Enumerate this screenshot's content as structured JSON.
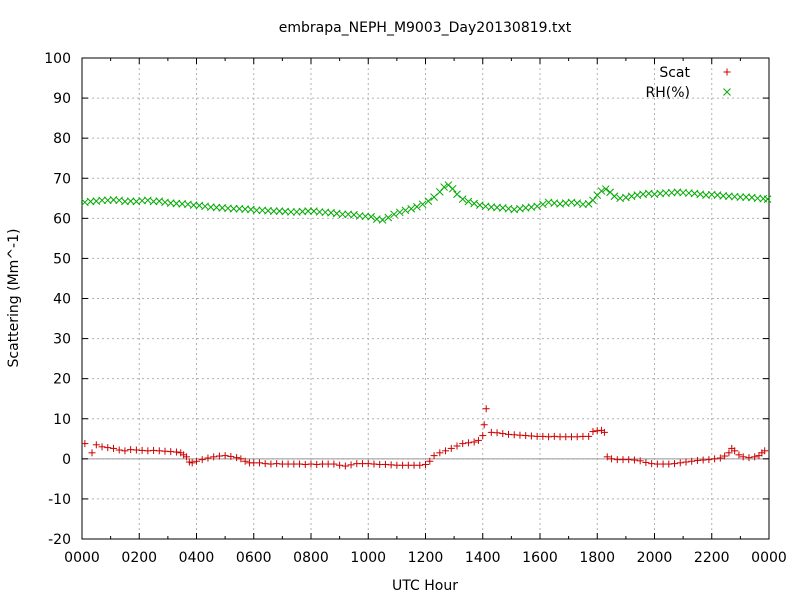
{
  "chart_data": {
    "type": "scatter",
    "title": "embrapa_NEPH_M9003_Day20130819.txt",
    "xlabel": "UTC Hour",
    "ylabel": "Scattering (Mm^-1)",
    "xlim": [
      0,
      24
    ],
    "ylim": [
      -20,
      100
    ],
    "grid": true,
    "legend_position": "top-right",
    "x_tick_labels": [
      "0000",
      "0200",
      "0400",
      "0600",
      "0800",
      "1000",
      "1200",
      "1400",
      "1600",
      "1800",
      "2000",
      "2200",
      "0000"
    ],
    "y_ticks": [
      -20,
      -10,
      0,
      10,
      20,
      30,
      40,
      50,
      60,
      70,
      80,
      90,
      100
    ],
    "zero_line": true,
    "series": [
      {
        "name": "Scat",
        "color": "#cc0000",
        "marker": "plus",
        "points": [
          [
            0.1,
            3.8
          ],
          [
            0.35,
            1.5
          ],
          [
            0.5,
            3.5
          ],
          [
            0.7,
            3.0
          ],
          [
            0.9,
            2.8
          ],
          [
            1.1,
            2.6
          ],
          [
            1.3,
            2.2
          ],
          [
            1.5,
            2.0
          ],
          [
            1.7,
            2.3
          ],
          [
            1.9,
            2.2
          ],
          [
            2.1,
            2.1
          ],
          [
            2.3,
            2.0
          ],
          [
            2.5,
            2.1
          ],
          [
            2.7,
            2.0
          ],
          [
            2.9,
            1.9
          ],
          [
            3.1,
            1.8
          ],
          [
            3.3,
            1.7
          ],
          [
            3.45,
            1.5
          ],
          [
            3.55,
            1.0
          ],
          [
            3.65,
            0.5
          ],
          [
            3.75,
            -0.8
          ],
          [
            3.85,
            -1.0
          ],
          [
            4.0,
            -0.6
          ],
          [
            4.2,
            -0.2
          ],
          [
            4.4,
            0.2
          ],
          [
            4.6,
            0.5
          ],
          [
            4.8,
            0.7
          ],
          [
            5.0,
            0.8
          ],
          [
            5.2,
            0.6
          ],
          [
            5.4,
            0.3
          ],
          [
            5.55,
            0.0
          ],
          [
            5.7,
            -0.6
          ],
          [
            5.85,
            -1.0
          ],
          [
            6.0,
            -1.0
          ],
          [
            6.2,
            -1.0
          ],
          [
            6.4,
            -1.2
          ],
          [
            6.6,
            -1.3
          ],
          [
            6.8,
            -1.2
          ],
          [
            7.0,
            -1.3
          ],
          [
            7.2,
            -1.3
          ],
          [
            7.4,
            -1.3
          ],
          [
            7.6,
            -1.3
          ],
          [
            7.8,
            -1.4
          ],
          [
            8.0,
            -1.3
          ],
          [
            8.2,
            -1.4
          ],
          [
            8.4,
            -1.3
          ],
          [
            8.6,
            -1.3
          ],
          [
            8.8,
            -1.3
          ],
          [
            9.0,
            -1.6
          ],
          [
            9.2,
            -1.8
          ],
          [
            9.4,
            -1.5
          ],
          [
            9.6,
            -1.2
          ],
          [
            9.8,
            -1.2
          ],
          [
            10.0,
            -1.2
          ],
          [
            10.2,
            -1.3
          ],
          [
            10.4,
            -1.4
          ],
          [
            10.6,
            -1.4
          ],
          [
            10.8,
            -1.5
          ],
          [
            11.0,
            -1.6
          ],
          [
            11.2,
            -1.6
          ],
          [
            11.4,
            -1.6
          ],
          [
            11.6,
            -1.6
          ],
          [
            11.8,
            -1.6
          ],
          [
            12.0,
            -1.4
          ],
          [
            12.15,
            -0.6
          ],
          [
            12.3,
            0.8
          ],
          [
            12.5,
            1.5
          ],
          [
            12.7,
            2.0
          ],
          [
            12.9,
            2.6
          ],
          [
            13.1,
            3.2
          ],
          [
            13.3,
            3.8
          ],
          [
            13.5,
            4.0
          ],
          [
            13.7,
            4.2
          ],
          [
            13.85,
            4.6
          ],
          [
            14.0,
            5.8
          ],
          [
            14.05,
            8.5
          ],
          [
            14.12,
            12.5
          ],
          [
            14.3,
            6.6
          ],
          [
            14.5,
            6.5
          ],
          [
            14.7,
            6.3
          ],
          [
            14.9,
            6.1
          ],
          [
            15.1,
            6.0
          ],
          [
            15.3,
            5.9
          ],
          [
            15.5,
            5.8
          ],
          [
            15.7,
            5.7
          ],
          [
            15.9,
            5.6
          ],
          [
            16.1,
            5.6
          ],
          [
            16.3,
            5.5
          ],
          [
            16.5,
            5.6
          ],
          [
            16.7,
            5.5
          ],
          [
            16.9,
            5.5
          ],
          [
            17.1,
            5.5
          ],
          [
            17.3,
            5.5
          ],
          [
            17.5,
            5.6
          ],
          [
            17.7,
            5.6
          ],
          [
            17.85,
            6.8
          ],
          [
            18.0,
            7.0
          ],
          [
            18.15,
            7.1
          ],
          [
            18.25,
            6.6
          ],
          [
            18.35,
            0.5
          ],
          [
            18.5,
            0.0
          ],
          [
            18.7,
            -0.2
          ],
          [
            18.9,
            -0.2
          ],
          [
            19.1,
            -0.2
          ],
          [
            19.3,
            -0.3
          ],
          [
            19.5,
            -0.5
          ],
          [
            19.7,
            -0.9
          ],
          [
            19.9,
            -1.2
          ],
          [
            20.1,
            -1.3
          ],
          [
            20.3,
            -1.3
          ],
          [
            20.5,
            -1.3
          ],
          [
            20.7,
            -1.2
          ],
          [
            20.9,
            -1.0
          ],
          [
            21.1,
            -0.8
          ],
          [
            21.3,
            -0.6
          ],
          [
            21.5,
            -0.4
          ],
          [
            21.7,
            -0.3
          ],
          [
            21.9,
            -0.2
          ],
          [
            22.1,
            0.0
          ],
          [
            22.3,
            0.2
          ],
          [
            22.45,
            0.7
          ],
          [
            22.6,
            1.5
          ],
          [
            22.7,
            2.6
          ],
          [
            22.8,
            2.0
          ],
          [
            22.95,
            1.0
          ],
          [
            23.1,
            0.5
          ],
          [
            23.3,
            0.3
          ],
          [
            23.5,
            0.5
          ],
          [
            23.65,
            0.8
          ],
          [
            23.75,
            1.5
          ],
          [
            23.85,
            2.0
          ]
        ]
      },
      {
        "name": "RH(%)",
        "color": "#00aa00",
        "marker": "cross",
        "points": [
          [
            0.1,
            64.0
          ],
          [
            0.3,
            64.2
          ],
          [
            0.5,
            64.3
          ],
          [
            0.7,
            64.5
          ],
          [
            0.9,
            64.5
          ],
          [
            1.1,
            64.6
          ],
          [
            1.3,
            64.5
          ],
          [
            1.5,
            64.2
          ],
          [
            1.7,
            64.3
          ],
          [
            1.9,
            64.2
          ],
          [
            2.1,
            64.4
          ],
          [
            2.3,
            64.5
          ],
          [
            2.5,
            64.2
          ],
          [
            2.7,
            64.3
          ],
          [
            2.9,
            64.0
          ],
          [
            3.1,
            63.8
          ],
          [
            3.3,
            63.7
          ],
          [
            3.5,
            63.6
          ],
          [
            3.7,
            63.5
          ],
          [
            3.9,
            63.3
          ],
          [
            4.1,
            63.2
          ],
          [
            4.3,
            63.0
          ],
          [
            4.5,
            62.8
          ],
          [
            4.7,
            62.7
          ],
          [
            4.9,
            62.6
          ],
          [
            5.1,
            62.5
          ],
          [
            5.3,
            62.4
          ],
          [
            5.5,
            62.4
          ],
          [
            5.7,
            62.3
          ],
          [
            5.9,
            62.2
          ],
          [
            6.1,
            62.0
          ],
          [
            6.3,
            62.0
          ],
          [
            6.5,
            61.9
          ],
          [
            6.7,
            61.8
          ],
          [
            6.9,
            61.8
          ],
          [
            7.1,
            61.7
          ],
          [
            7.3,
            61.6
          ],
          [
            7.5,
            61.6
          ],
          [
            7.7,
            61.7
          ],
          [
            7.9,
            61.8
          ],
          [
            8.1,
            61.8
          ],
          [
            8.3,
            61.6
          ],
          [
            8.5,
            61.5
          ],
          [
            8.7,
            61.4
          ],
          [
            8.9,
            61.2
          ],
          [
            9.1,
            61.0
          ],
          [
            9.3,
            61.0
          ],
          [
            9.5,
            60.9
          ],
          [
            9.7,
            60.6
          ],
          [
            9.9,
            60.5
          ],
          [
            10.1,
            60.4
          ],
          [
            10.3,
            59.8
          ],
          [
            10.5,
            59.6
          ],
          [
            10.7,
            60.2
          ],
          [
            10.9,
            61.0
          ],
          [
            11.1,
            61.5
          ],
          [
            11.3,
            62.0
          ],
          [
            11.5,
            62.4
          ],
          [
            11.7,
            62.9
          ],
          [
            11.9,
            63.5
          ],
          [
            12.1,
            64.3
          ],
          [
            12.3,
            65.3
          ],
          [
            12.5,
            66.6
          ],
          [
            12.65,
            67.8
          ],
          [
            12.8,
            68.3
          ],
          [
            12.95,
            67.4
          ],
          [
            13.1,
            66.0
          ],
          [
            13.3,
            64.8
          ],
          [
            13.5,
            64.2
          ],
          [
            13.7,
            63.7
          ],
          [
            13.9,
            63.3
          ],
          [
            14.1,
            63.0
          ],
          [
            14.3,
            62.8
          ],
          [
            14.5,
            62.7
          ],
          [
            14.7,
            62.6
          ],
          [
            14.9,
            62.4
          ],
          [
            15.1,
            62.2
          ],
          [
            15.3,
            62.4
          ],
          [
            15.5,
            62.6
          ],
          [
            15.7,
            62.8
          ],
          [
            15.9,
            63.0
          ],
          [
            16.1,
            63.5
          ],
          [
            16.3,
            64.0
          ],
          [
            16.5,
            63.8
          ],
          [
            16.7,
            63.6
          ],
          [
            16.9,
            63.8
          ],
          [
            17.1,
            64.0
          ],
          [
            17.3,
            63.8
          ],
          [
            17.5,
            63.5
          ],
          [
            17.7,
            63.6
          ],
          [
            17.85,
            64.5
          ],
          [
            18.0,
            65.8
          ],
          [
            18.15,
            66.8
          ],
          [
            18.3,
            67.3
          ],
          [
            18.45,
            66.5
          ],
          [
            18.6,
            65.5
          ],
          [
            18.8,
            65.0
          ],
          [
            19.0,
            65.2
          ],
          [
            19.2,
            65.5
          ],
          [
            19.4,
            65.8
          ],
          [
            19.6,
            66.0
          ],
          [
            19.8,
            66.2
          ],
          [
            20.0,
            66.0
          ],
          [
            20.2,
            66.2
          ],
          [
            20.4,
            66.3
          ],
          [
            20.6,
            66.4
          ],
          [
            20.8,
            66.5
          ],
          [
            21.0,
            66.4
          ],
          [
            21.2,
            66.3
          ],
          [
            21.4,
            66.2
          ],
          [
            21.6,
            66.0
          ],
          [
            21.8,
            65.8
          ],
          [
            22.0,
            65.9
          ],
          [
            22.2,
            65.8
          ],
          [
            22.4,
            65.6
          ],
          [
            22.6,
            65.5
          ],
          [
            22.8,
            65.4
          ],
          [
            23.0,
            65.3
          ],
          [
            23.2,
            65.3
          ],
          [
            23.4,
            65.2
          ],
          [
            23.6,
            65.0
          ],
          [
            23.8,
            64.9
          ],
          [
            23.95,
            64.8
          ]
        ]
      }
    ]
  }
}
